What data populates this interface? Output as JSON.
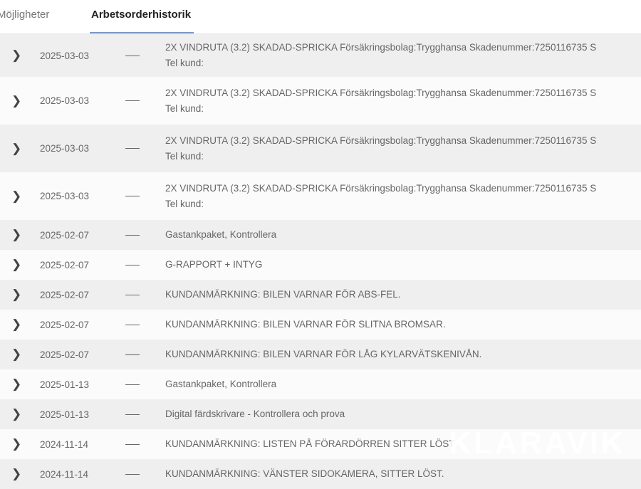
{
  "tabs": [
    {
      "label": "Möjligheter"
    },
    {
      "label": "Arbetsorderhistorik",
      "active": true
    }
  ],
  "rows": [
    {
      "date": "2025-03-03",
      "status": "—",
      "line1": "2X VINDRUTA (3.2) SKADAD-SPRICKA Försäkringsbolag:Trygghansa Skadenummer:7250116735 S",
      "line2": "Tel kund:"
    },
    {
      "date": "2025-03-03",
      "status": "—",
      "line1": "2X VINDRUTA (3.2) SKADAD-SPRICKA Försäkringsbolag:Trygghansa Skadenummer:7250116735 S",
      "line2": "Tel kund:"
    },
    {
      "date": "2025-03-03",
      "status": "—",
      "line1": "2X VINDRUTA (3.2) SKADAD-SPRICKA Försäkringsbolag:Trygghansa Skadenummer:7250116735 S",
      "line2": "Tel kund:"
    },
    {
      "date": "2025-03-03",
      "status": "—",
      "line1": "2X VINDRUTA (3.2) SKADAD-SPRICKA Försäkringsbolag:Trygghansa Skadenummer:7250116735 S",
      "line2": "Tel kund:"
    },
    {
      "date": "2025-02-07",
      "status": "—",
      "line1": "Gastankpaket, Kontrollera"
    },
    {
      "date": "2025-02-07",
      "status": "—",
      "line1": "G-RAPPORT + INTYG"
    },
    {
      "date": "2025-02-07",
      "status": "—",
      "line1": "KUNDANMÄRKNING: BILEN VARNAR FÖR ABS-FEL."
    },
    {
      "date": "2025-02-07",
      "status": "—",
      "line1": "KUNDANMÄRKNING: BILEN VARNAR FÖR SLITNA BROMSAR."
    },
    {
      "date": "2025-02-07",
      "status": "—",
      "line1": "KUNDANMÄRKNING: BILEN VARNAR FÖR LÅG KYLARVÄTSKENIVÅN."
    },
    {
      "date": "2025-01-13",
      "status": "—",
      "line1": "Gastankpaket, Kontrollera"
    },
    {
      "date": "2025-01-13",
      "status": "—",
      "line1": "Digital färdskrivare - Kontrollera och prova"
    },
    {
      "date": "2024-11-14",
      "status": "—",
      "line1": "KUNDANMÄRKNING: LISTEN PÅ FÖRARDÖRREN SITTER LÖST"
    },
    {
      "date": "2024-11-14",
      "status": "—",
      "line1": "KUNDANMÄRKNING: VÄNSTER SIDOKAMERA, SITTER LÖST."
    }
  ],
  "watermark": "KLARAVIK",
  "colors": {
    "active_tab_underline": "#6f9ad6",
    "row_alt": "#efefef"
  }
}
